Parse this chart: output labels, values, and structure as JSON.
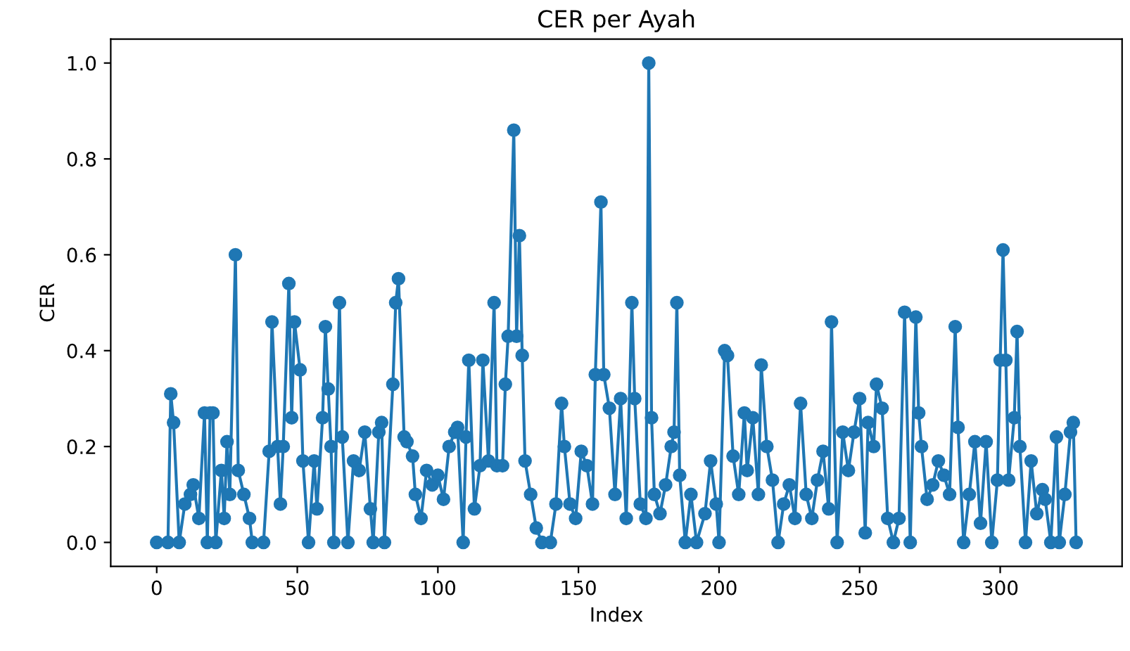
{
  "chart_data": {
    "type": "line",
    "title": "CER per Ayah",
    "xlabel": "Index",
    "ylabel": "CER",
    "xlim": [
      -16.35,
      343.35
    ],
    "xticks": [
      0,
      50,
      100,
      150,
      200,
      250,
      300
    ],
    "ylim": [
      -0.05,
      1.05
    ],
    "yticks": [
      {
        "value": 0,
        "label": "0.0"
      },
      {
        "value": 0.2,
        "label": "0.2"
      },
      {
        "value": 0.4,
        "label": "0.4"
      },
      {
        "value": 0.6,
        "label": "0.6"
      },
      {
        "value": 0.8,
        "label": "0.8"
      },
      {
        "value": 1.0,
        "label": "1.0"
      }
    ],
    "marker": "circle",
    "line_style": "solid",
    "grid": false,
    "legend": false,
    "series": [
      {
        "color": "#1f77b4",
        "x": [
          0,
          4,
          5,
          6,
          8,
          10,
          12,
          13,
          15,
          17,
          18,
          19,
          20,
          21,
          23,
          24,
          25,
          26,
          28,
          29,
          31,
          33,
          34,
          38,
          40,
          41,
          43,
          44,
          45,
          47,
          48,
          49,
          51,
          52,
          54,
          56,
          57,
          59,
          60,
          61,
          62,
          63,
          65,
          66,
          68,
          70,
          72,
          74,
          76,
          77,
          79,
          80,
          81,
          84,
          85,
          86,
          88,
          89,
          91,
          92,
          94,
          96,
          98,
          100,
          102,
          104,
          106,
          107,
          109,
          110,
          111,
          113,
          115,
          116,
          118,
          120,
          121,
          123,
          124,
          125,
          127,
          128,
          129,
          130,
          131,
          133,
          135,
          137,
          140,
          142,
          144,
          145,
          147,
          149,
          151,
          153,
          155,
          156,
          158,
          159,
          161,
          163,
          165,
          167,
          169,
          170,
          172,
          174,
          175,
          176,
          177,
          179,
          181,
          183,
          184,
          185,
          186,
          188,
          190,
          192,
          195,
          197,
          199,
          200,
          202,
          203,
          205,
          207,
          209,
          210,
          212,
          214,
          215,
          217,
          219,
          221,
          223,
          225,
          227,
          229,
          231,
          233,
          235,
          237,
          239,
          240,
          242,
          244,
          246,
          248,
          250,
          252,
          253,
          255,
          256,
          258,
          260,
          262,
          264,
          266,
          268,
          270,
          271,
          272,
          274,
          276,
          278,
          280,
          282,
          284,
          285,
          287,
          289,
          291,
          293,
          295,
          297,
          299,
          300,
          301,
          302,
          303,
          305,
          306,
          307,
          309,
          311,
          313,
          315,
          316,
          318,
          320,
          321,
          323,
          325,
          326,
          327
        ],
        "values": [
          0,
          0,
          0.31,
          0.25,
          0,
          0.08,
          0.1,
          0.12,
          0.05,
          0.27,
          0,
          0.27,
          0.27,
          0,
          0.15,
          0.05,
          0.21,
          0.1,
          0.6,
          0.15,
          0.1,
          0.05,
          0,
          0,
          0.19,
          0.46,
          0.2,
          0.08,
          0.2,
          0.54,
          0.26,
          0.46,
          0.36,
          0.17,
          0,
          0.17,
          0.07,
          0.26,
          0.45,
          0.32,
          0.2,
          0,
          0.5,
          0.22,
          0,
          0.17,
          0.15,
          0.23,
          0.07,
          0,
          0.23,
          0.25,
          0,
          0.33,
          0.5,
          0.55,
          0.22,
          0.21,
          0.18,
          0.1,
          0.05,
          0.15,
          0.12,
          0.14,
          0.09,
          0.2,
          0.23,
          0.24,
          0,
          0.22,
          0.38,
          0.07,
          0.16,
          0.38,
          0.17,
          0.5,
          0.16,
          0.16,
          0.33,
          0.43,
          0.86,
          0.43,
          0.64,
          0.39,
          0.17,
          0.1,
          0.03,
          0,
          0,
          0.08,
          0.29,
          0.2,
          0.08,
          0.05,
          0.19,
          0.16,
          0.08,
          0.35,
          0.71,
          0.35,
          0.28,
          0.1,
          0.3,
          0.05,
          0.5,
          0.3,
          0.08,
          0.05,
          1.0,
          0.26,
          0.1,
          0.06,
          0.12,
          0.2,
          0.23,
          0.5,
          0.14,
          0,
          0.1,
          0,
          0.06,
          0.17,
          0.08,
          0,
          0.4,
          0.39,
          0.18,
          0.1,
          0.27,
          0.15,
          0.26,
          0.1,
          0.37,
          0.2,
          0.13,
          0,
          0.08,
          0.12,
          0.05,
          0.29,
          0.1,
          0.05,
          0.13,
          0.19,
          0.07,
          0.46,
          0,
          0.23,
          0.15,
          0.23,
          0.3,
          0.02,
          0.25,
          0.2,
          0.33,
          0.28,
          0.05,
          0,
          0.05,
          0.48,
          0,
          0.47,
          0.27,
          0.2,
          0.09,
          0.12,
          0.17,
          0.14,
          0.1,
          0.45,
          0.24,
          0,
          0.1,
          0.21,
          0.04,
          0.21,
          0,
          0.13,
          0.38,
          0.61,
          0.38,
          0.13,
          0.26,
          0.44,
          0.2,
          0,
          0.17,
          0.06,
          0.11,
          0.09,
          0,
          0.22,
          0,
          0.1,
          0.23,
          0.25,
          0
        ]
      }
    ]
  }
}
